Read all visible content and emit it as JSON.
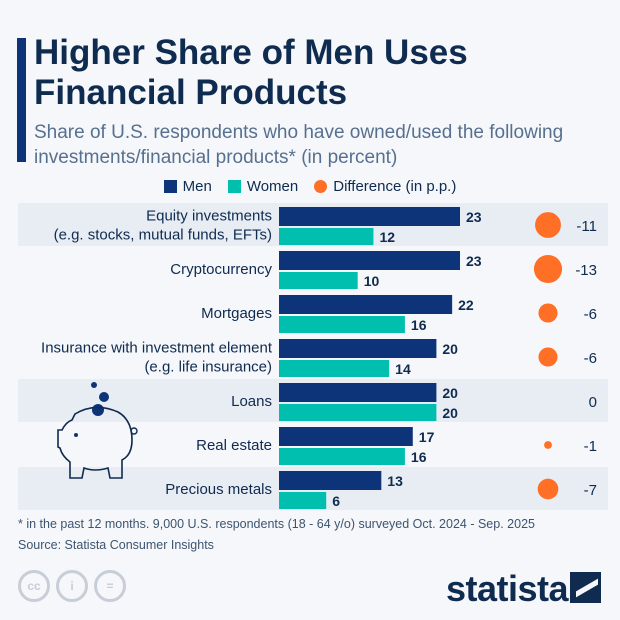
{
  "title": "Higher Share of Men Uses Financial Products",
  "subtitle": "Share of U.S. respondents who have owned/used the following investments/financial products* (in percent)",
  "colors": {
    "men": "#0d3479",
    "women": "#00bfae",
    "difference": "#ff6f25",
    "title": "#0f2b4f"
  },
  "chart_data": {
    "type": "bar",
    "orientation": "horizontal",
    "categories": [
      [
        "Equity investments",
        "(e.g. stocks, mutual funds, EFTs)"
      ],
      [
        "Cryptocurrency"
      ],
      [
        "Mortgages"
      ],
      [
        "Insurance with investment element",
        "(e.g. life insurance)"
      ],
      [
        "Loans"
      ],
      [
        "Real estate"
      ],
      [
        "Precious metals"
      ]
    ],
    "series": [
      {
        "name": "Men",
        "values": [
          23,
          23,
          22,
          20,
          20,
          17,
          13
        ]
      },
      {
        "name": "Women",
        "values": [
          12,
          10,
          16,
          14,
          20,
          16,
          6
        ]
      },
      {
        "name": "Difference (in p.p.)",
        "values": [
          -11,
          -13,
          -6,
          -6,
          0,
          -1,
          -7
        ]
      }
    ],
    "legend_position": "top",
    "grid": false
  },
  "footnote": "* in the past 12 months. 9,000 U.S. respondents (18 - 64 y/o) surveyed Oct. 2024 - Sep. 2025",
  "source": "Source: Statista Consumer Insights",
  "brand": "statista",
  "license_icons": [
    "cc",
    "by",
    "nd"
  ]
}
